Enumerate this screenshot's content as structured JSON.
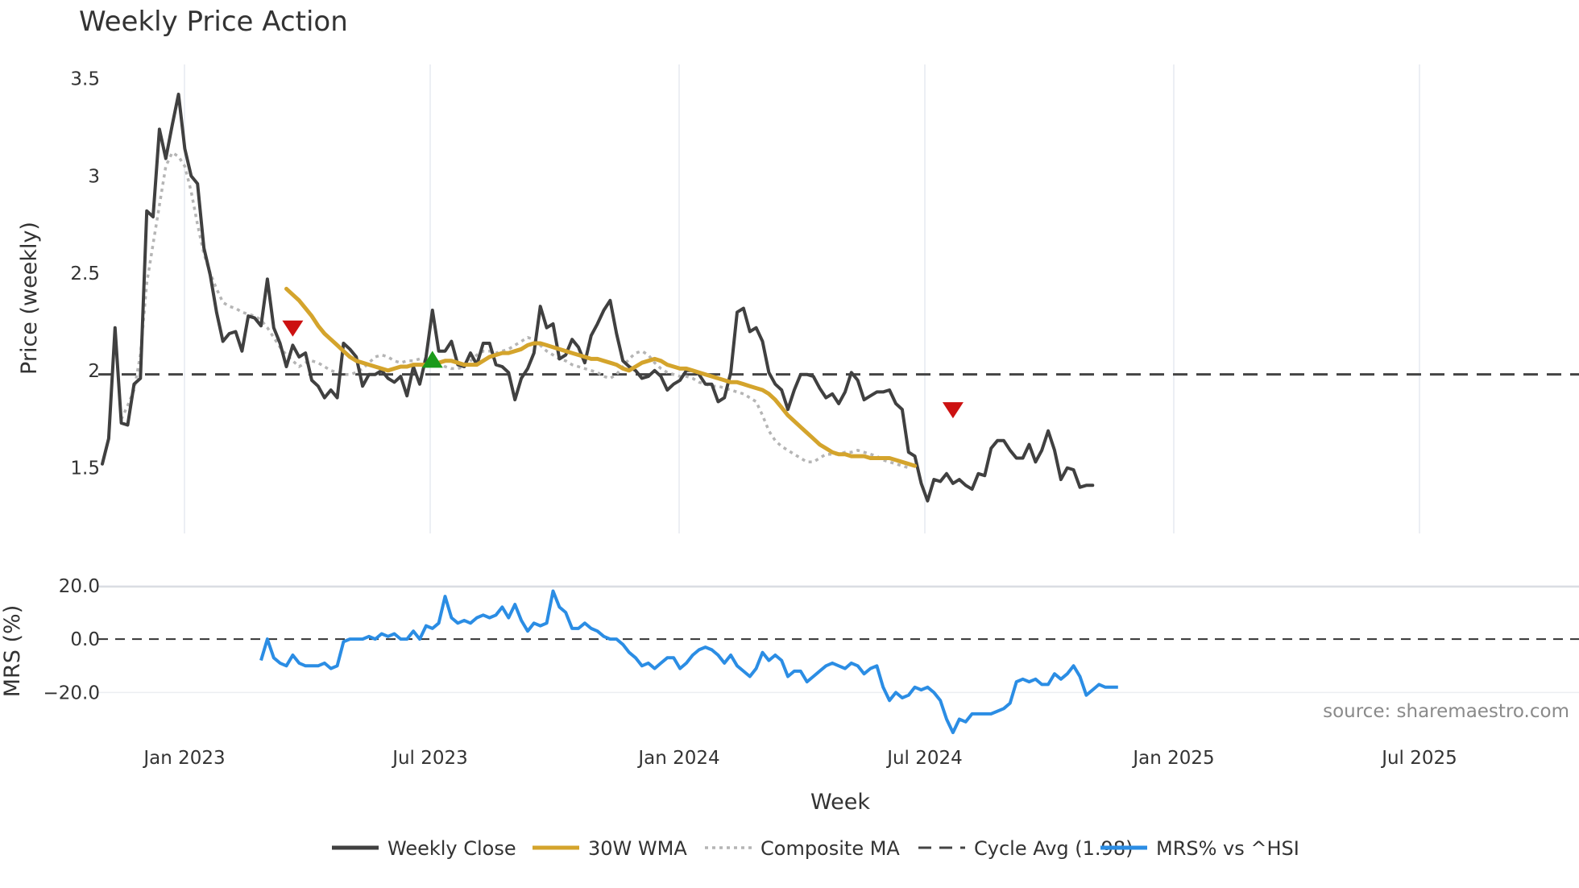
{
  "chart_data": {
    "title": "Weekly Price Action",
    "type": "line",
    "xlabel": "Week",
    "x_ticks": [
      "Jan 2023",
      "Jul 2023",
      "Jan 2024",
      "Jul 2024",
      "Jan 2025",
      "Jul 2025"
    ],
    "price_panel": {
      "ylabel": "Price (weekly)",
      "ylim": [
        1.2,
        3.54
      ],
      "y_ticks": [
        "1.5",
        "2",
        "2.5",
        "3",
        "3.5"
      ],
      "y_tick_values": [
        1.5,
        2,
        2.5,
        3,
        3.5
      ],
      "cycle_avg": 1.98,
      "series": [
        {
          "name": "Weekly Close",
          "color": "#404040",
          "style": "solid",
          "values": [
            1.52,
            1.65,
            2.22,
            1.73,
            1.72,
            1.93,
            1.96,
            2.82,
            2.79,
            3.24,
            3.09,
            3.26,
            3.42,
            3.14,
            3.0,
            2.96,
            2.63,
            2.49,
            2.3,
            2.15,
            2.19,
            2.2,
            2.1,
            2.28,
            2.27,
            2.23,
            2.47,
            2.22,
            2.14,
            2.02,
            2.13,
            2.07,
            2.09,
            1.95,
            1.92,
            1.86,
            1.9,
            1.86,
            2.14,
            2.11,
            2.07,
            1.92,
            1.98,
            1.98,
            2.0,
            1.96,
            1.94,
            1.97,
            1.87,
            2.02,
            1.93,
            2.07,
            2.31,
            2.1,
            2.1,
            2.15,
            2.03,
            2.02,
            2.09,
            2.03,
            2.14,
            2.14,
            2.03,
            2.02,
            1.99,
            1.85,
            1.96,
            2.01,
            2.09,
            2.33,
            2.22,
            2.24,
            2.06,
            2.08,
            2.16,
            2.12,
            2.04,
            2.18,
            2.24,
            2.31,
            2.36,
            2.19,
            2.05,
            2.02,
            2.0,
            1.96,
            1.97,
            2.0,
            1.97,
            1.9,
            1.93,
            1.95,
            2.0,
            2.0,
            1.98,
            1.93,
            1.93,
            1.84,
            1.86,
            1.99,
            2.3,
            2.32,
            2.2,
            2.22,
            2.15,
            1.99,
            1.93,
            1.9,
            1.8,
            1.9,
            1.98,
            1.98,
            1.97,
            1.91,
            1.86,
            1.88,
            1.83,
            1.89,
            1.99,
            1.95,
            1.85,
            1.87,
            1.89,
            1.89,
            1.9,
            1.83,
            1.8,
            1.58,
            1.56,
            1.42,
            1.33,
            1.44,
            1.43,
            1.47,
            1.42,
            1.44,
            1.41,
            1.39,
            1.47,
            1.46,
            1.6,
            1.64,
            1.64,
            1.59,
            1.55,
            1.55,
            1.62,
            1.53,
            1.59,
            1.69,
            1.59,
            1.44,
            1.5,
            1.49,
            1.4,
            1.41,
            1.41
          ]
        },
        {
          "name": "30W WMA",
          "color": "#d4a42c",
          "style": "solid",
          "start": 29,
          "values": [
            2.42,
            2.39,
            2.36,
            2.32,
            2.28,
            2.23,
            2.19,
            2.16,
            2.13,
            2.1,
            2.07,
            2.05,
            2.04,
            2.03,
            2.02,
            2.01,
            2.0,
            2.01,
            2.02,
            2.02,
            2.03,
            2.03,
            2.03,
            2.04,
            2.04,
            2.05,
            2.05,
            2.04,
            2.03,
            2.03,
            2.03,
            2.05,
            2.07,
            2.08,
            2.09,
            2.09,
            2.1,
            2.11,
            2.13,
            2.14,
            2.14,
            2.13,
            2.12,
            2.11,
            2.1,
            2.09,
            2.08,
            2.07,
            2.06,
            2.06,
            2.05,
            2.04,
            2.03,
            2.01,
            2.0,
            2.02,
            2.04,
            2.05,
            2.06,
            2.05,
            2.03,
            2.02,
            2.01,
            2.01,
            2.0,
            1.99,
            1.98,
            1.97,
            1.96,
            1.95,
            1.94,
            1.94,
            1.93,
            1.92,
            1.91,
            1.9,
            1.88,
            1.85,
            1.81,
            1.77,
            1.74,
            1.71,
            1.68,
            1.65,
            1.62,
            1.6,
            1.58,
            1.57,
            1.57,
            1.56,
            1.56,
            1.56,
            1.55,
            1.55,
            1.55,
            1.55,
            1.54,
            1.53,
            1.52,
            1.51
          ]
        },
        {
          "name": "Composite MA",
          "color": "#b5b5b5",
          "style": "dotted",
          "start": 3,
          "values": [
            1.75,
            1.82,
            1.9,
            2.08,
            2.45,
            2.65,
            2.85,
            3.05,
            3.12,
            3.1,
            3.05,
            2.92,
            2.75,
            2.6,
            2.5,
            2.42,
            2.35,
            2.33,
            2.32,
            2.3,
            2.29,
            2.28,
            2.26,
            2.22,
            2.17,
            2.12,
            2.08,
            2.05,
            2.02,
            2.04,
            2.05,
            2.04,
            2.02,
            2.0,
            1.99,
            1.98,
            1.98,
            1.99,
            2.01,
            2.04,
            2.07,
            2.08,
            2.07,
            2.05,
            2.04,
            2.05,
            2.05,
            2.06,
            2.05,
            2.05,
            2.04,
            2.02,
            2.01,
            2.01,
            2.02,
            2.05,
            2.08,
            2.1,
            2.1,
            2.09,
            2.1,
            2.11,
            2.13,
            2.15,
            2.17,
            2.16,
            2.13,
            2.1,
            2.08,
            2.06,
            2.05,
            2.03,
            2.02,
            2.01,
            2.0,
            1.99,
            1.97,
            1.96,
            1.98,
            2.02,
            2.06,
            2.09,
            2.1,
            2.08,
            2.04,
            2.01,
            1.99,
            1.98,
            1.97,
            1.97,
            1.96,
            1.94,
            1.93,
            1.92,
            1.92,
            1.91,
            1.9,
            1.89,
            1.88,
            1.86,
            1.84,
            1.77,
            1.69,
            1.64,
            1.61,
            1.59,
            1.57,
            1.55,
            1.53,
            1.53,
            1.55,
            1.57,
            1.57,
            1.57,
            1.58,
            1.58,
            1.59,
            1.58,
            1.57,
            1.56,
            1.54,
            1.53,
            1.52,
            1.51,
            1.5
          ]
        }
      ],
      "markers": [
        {
          "type": "down",
          "index": 30,
          "value": 2.22,
          "color": "#cc1111"
        },
        {
          "type": "up",
          "index": 52,
          "value": 2.06,
          "color": "#1a9a1a"
        },
        {
          "type": "down",
          "index": 134,
          "value": 1.8,
          "color": "#cc1111"
        }
      ]
    },
    "mrs_panel": {
      "ylabel": "MRS (%)",
      "ylim": [
        -38,
        26
      ],
      "y_ticks": [
        "20.0",
        "0.0",
        "−20.0"
      ],
      "y_tick_values": [
        20,
        0,
        -20
      ],
      "zero_line": 0,
      "series": {
        "name": "MRS% vs ^HSI",
        "color": "#2b8de4",
        "start": 25,
        "values": [
          -8,
          0,
          -7,
          -9,
          -10,
          -6,
          -9,
          -10,
          -10,
          -10,
          -9,
          -11,
          -10,
          -1,
          0,
          0,
          0,
          1,
          0,
          2,
          1,
          2,
          0,
          0,
          3,
          0,
          5,
          4,
          6,
          16,
          8,
          6,
          7,
          6,
          8,
          9,
          8,
          9,
          12,
          8,
          13,
          7,
          3,
          6,
          5,
          6,
          18,
          12,
          10,
          4,
          4,
          6,
          4,
          3,
          1,
          0,
          0,
          -2,
          -5,
          -7,
          -10,
          -9,
          -11,
          -9,
          -7,
          -7,
          -11,
          -9,
          -6,
          -4,
          -3,
          -4,
          -6,
          -9,
          -6,
          -10,
          -12,
          -14,
          -11,
          -5,
          -8,
          -6,
          -8,
          -14,
          -12,
          -12,
          -16,
          -14,
          -12,
          -10,
          -9,
          -10,
          -11,
          -9,
          -10,
          -13,
          -11,
          -10,
          -18,
          -23,
          -20,
          -22,
          -21,
          -18,
          -19,
          -18,
          -20,
          -23,
          -30,
          -35,
          -30,
          -31,
          -28,
          -28,
          -28,
          -28,
          -27,
          -26,
          -24,
          -16,
          -15,
          -16,
          -15,
          -17,
          -17,
          -13,
          -15,
          -13,
          -10,
          -14,
          -21,
          -19,
          -17,
          -18,
          -18,
          -18
        ]
      }
    },
    "legend": [
      {
        "label": "Weekly Close",
        "color": "#404040",
        "style": "solid"
      },
      {
        "label": "30W WMA",
        "color": "#d4a42c",
        "style": "solid"
      },
      {
        "label": "Composite MA",
        "color": "#b5b5b5",
        "style": "dotted"
      },
      {
        "label": "Cycle Avg (1.98)",
        "color": "#444444",
        "style": "dashed"
      },
      {
        "label": "MRS% vs ^HSI",
        "color": "#2b8de4",
        "style": "solid"
      }
    ],
    "annotation": "source: sharemaestro.com"
  }
}
